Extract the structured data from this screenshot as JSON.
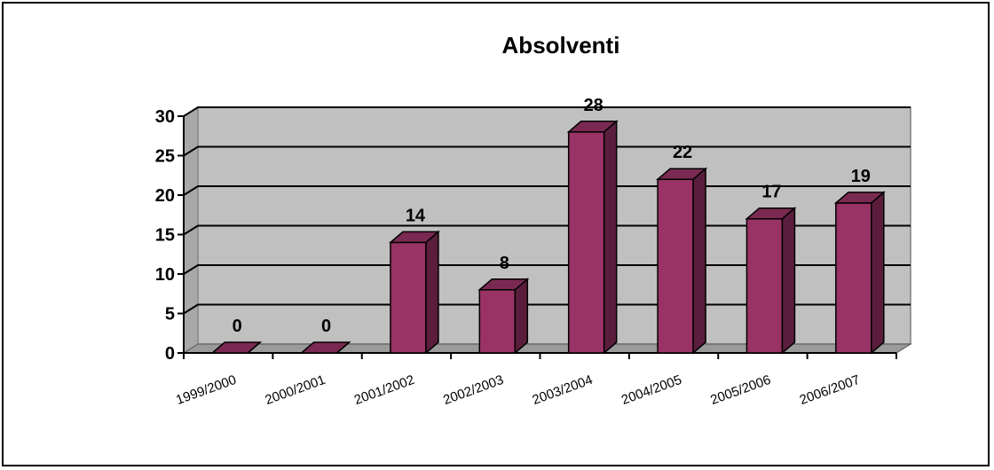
{
  "chart_data": {
    "type": "bar",
    "title": "Absolventi",
    "categories": [
      "1999/2000",
      "2000/2001",
      "2001/2002",
      "2002/2003",
      "2003/2004",
      "2004/2005",
      "2005/2006",
      "2006/2007"
    ],
    "values": [
      0,
      0,
      14,
      8,
      28,
      22,
      17,
      19
    ],
    "data_labels": [
      "0",
      "0",
      "14",
      "8",
      "28",
      "22",
      "17",
      "19"
    ],
    "ylim": [
      0,
      30
    ],
    "yticks": [
      0,
      5,
      10,
      15,
      20,
      25,
      30
    ],
    "ytick_labels": [
      "0",
      "5",
      "10",
      "15",
      "20",
      "25",
      "30"
    ],
    "grid": true,
    "legend": "none",
    "colors": {
      "bar_front": "#993366",
      "bar_side": "#5a1e3c",
      "bar_top": "#7a2a52",
      "plot_wall": "#c0c0c0",
      "floor": "#9a9a9a",
      "gridline": "#000000"
    }
  }
}
